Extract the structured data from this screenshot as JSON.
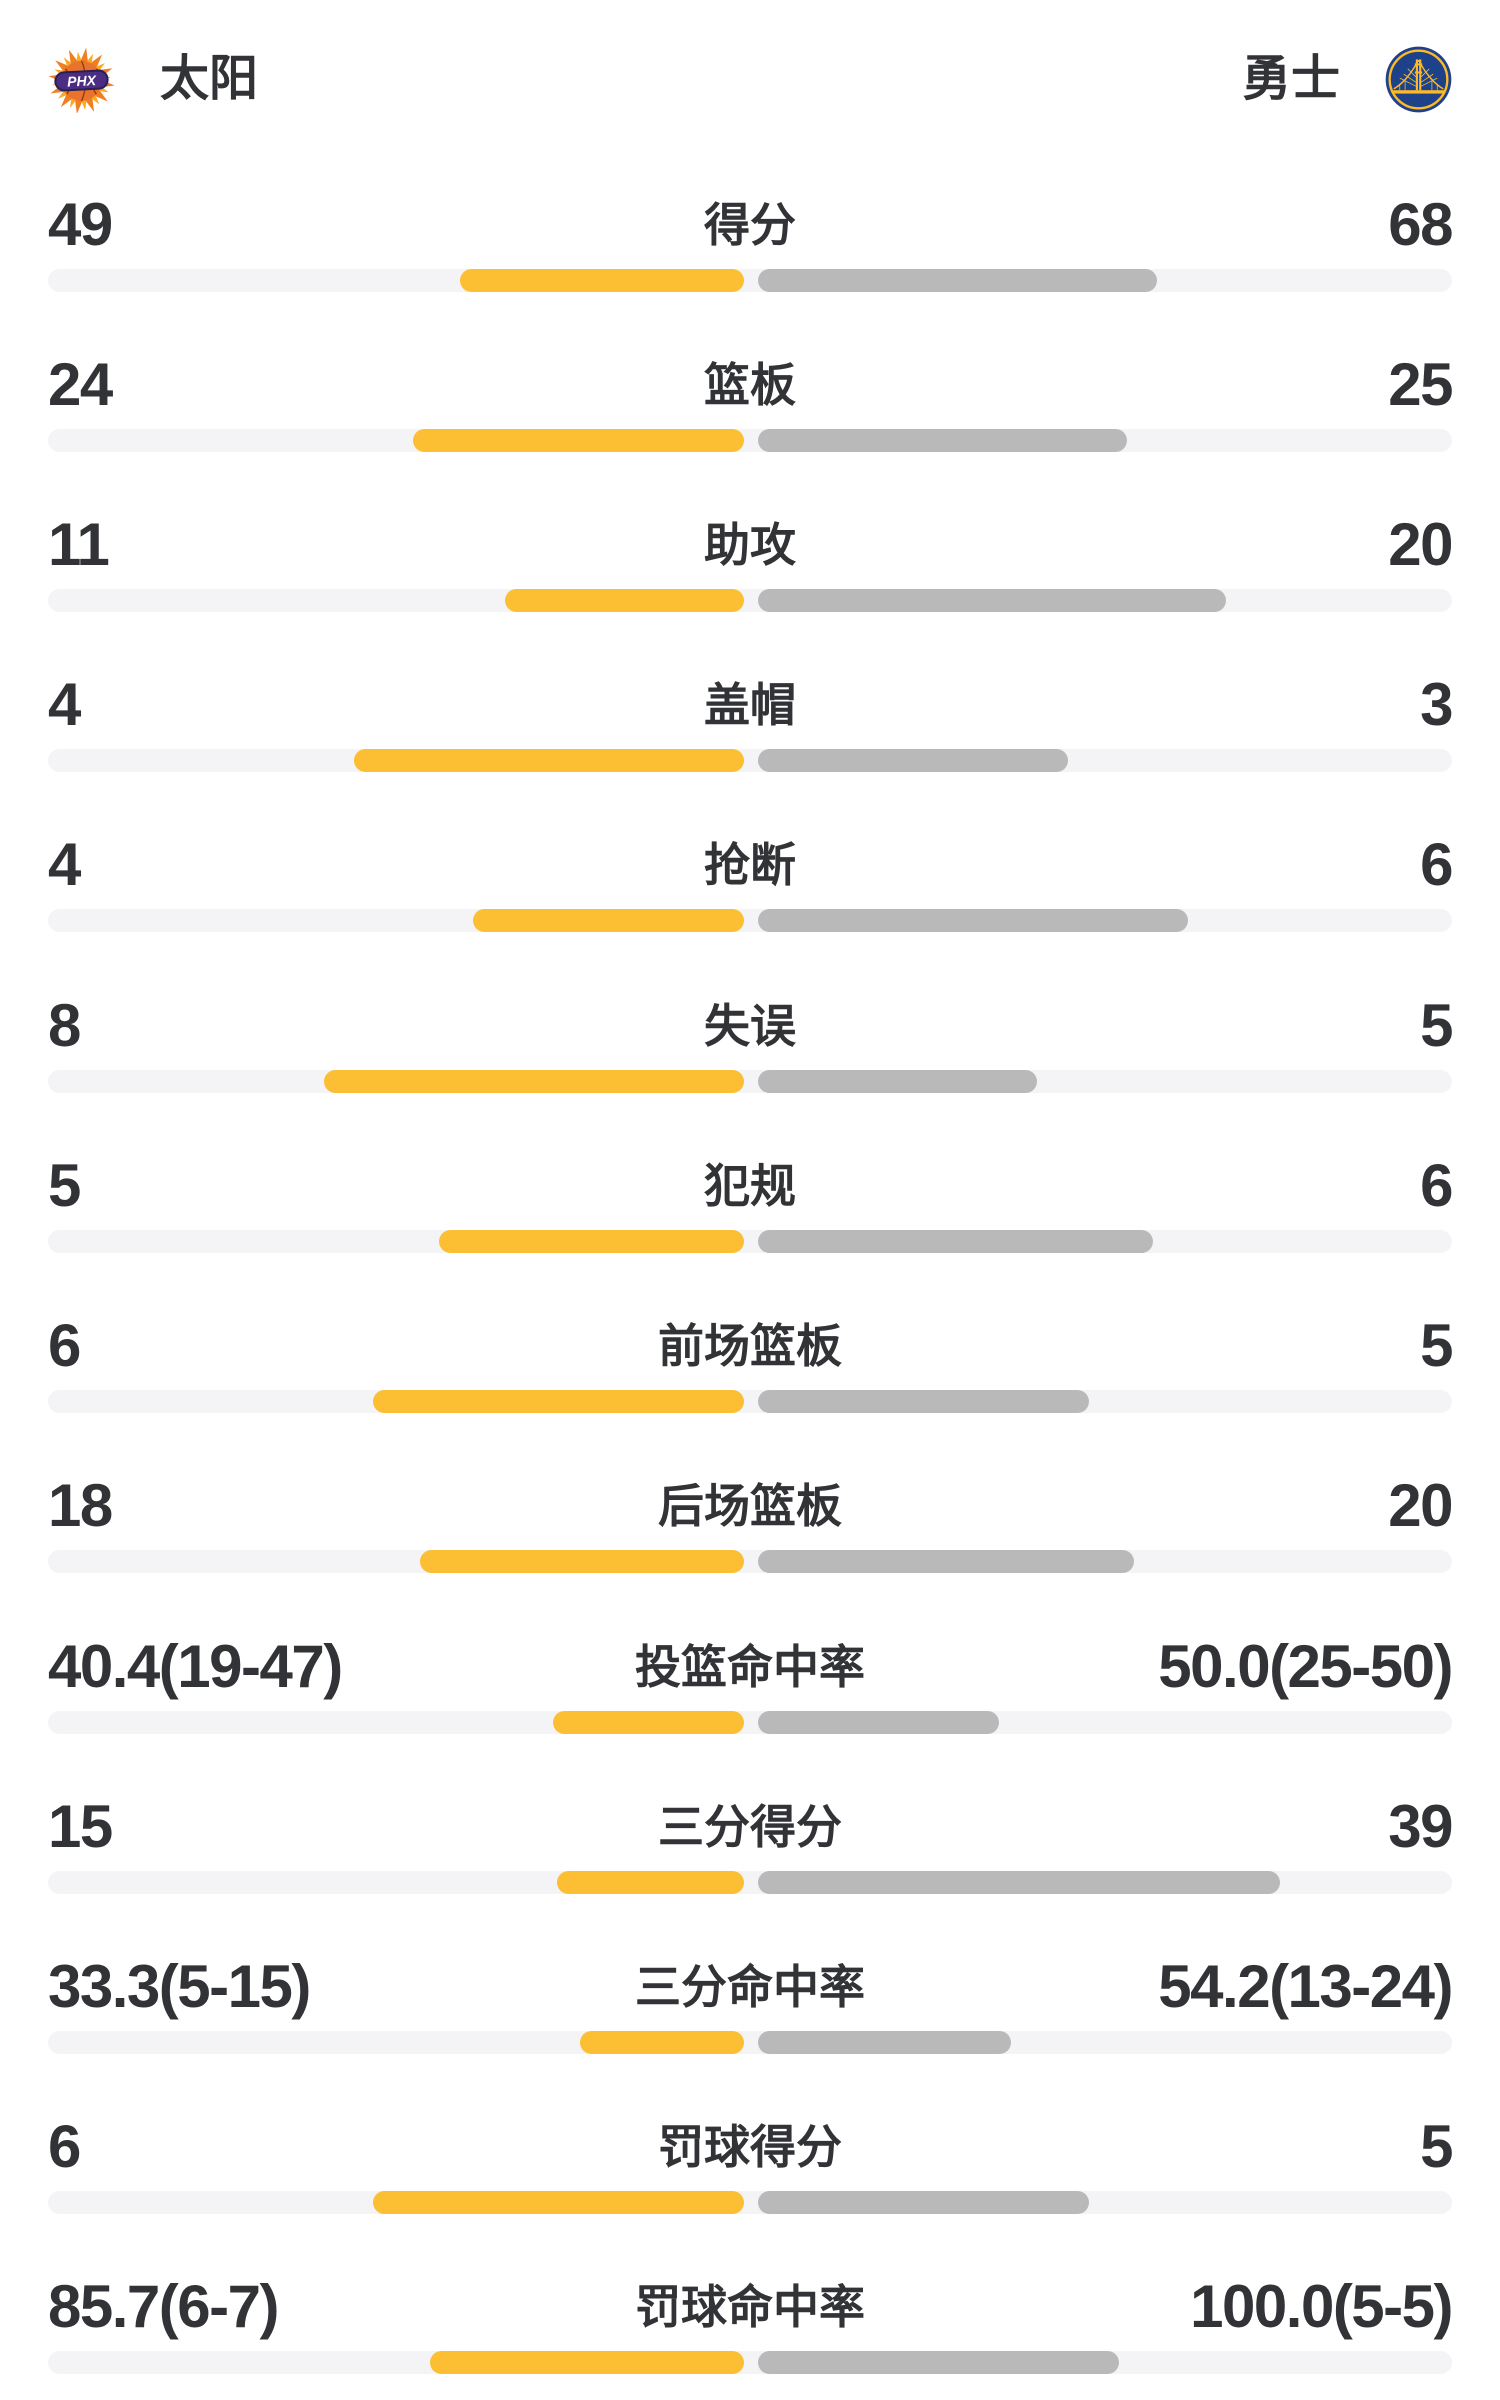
{
  "header": {
    "left_team": {
      "name": "太阳",
      "logo_text": "PHX"
    },
    "right_team": {
      "name": "勇士"
    }
  },
  "colors": {
    "background": "#FFFFFF",
    "text": "#323337",
    "left_bar": "#FCBE33",
    "right_bar": "#B9B9B9",
    "track": "#F4F4F6",
    "suns_orange": "#F07E23",
    "suns_yellow": "#FBA91E",
    "suns_ball": "#E9732C",
    "suns_seam": "#8C3B14",
    "suns_purple": "#4B2E83",
    "suns_purple_dark": "#2A1F54",
    "warriors_blue": "#1D428A",
    "warriors_gold": "#FDB927"
  },
  "chart_data": {
    "type": "bar",
    "orientation": "horizontal-paired",
    "legend_position": "none",
    "grid": false,
    "categories": [
      "得分",
      "篮板",
      "助攻",
      "盖帽",
      "抢断",
      "失误",
      "犯规",
      "前场篮板",
      "后场篮板",
      "投篮命中率",
      "三分得分",
      "三分命中率",
      "罚球得分",
      "罚球命中率"
    ],
    "series": [
      {
        "name": "太阳",
        "side": "left",
        "color": "#FCBE33",
        "values": [
          49,
          24,
          11,
          4,
          4,
          8,
          5,
          6,
          18,
          40.4,
          15,
          33.3,
          6,
          85.7
        ],
        "display": [
          "49",
          "24",
          "11",
          "4",
          "4",
          "8",
          "5",
          "6",
          "18",
          "40.4(19-47)",
          "15",
          "33.3(5-15)",
          "6",
          "85.7(6-7)"
        ],
        "bar_fracs": [
          0.202,
          0.236,
          0.17,
          0.278,
          0.193,
          0.299,
          0.217,
          0.264,
          0.231,
          0.136,
          0.133,
          0.117,
          0.264,
          0.224
        ]
      },
      {
        "name": "勇士",
        "side": "right",
        "color": "#B9B9B9",
        "values": [
          68,
          25,
          20,
          3,
          6,
          5,
          6,
          5,
          20,
          50.0,
          39,
          54.2,
          5,
          100.0
        ],
        "display": [
          "68",
          "25",
          "20",
          "3",
          "6",
          "5",
          "6",
          "5",
          "20",
          "50.0(25-50)",
          "39",
          "54.2(13-24)",
          "5",
          "100.0(5-5)"
        ],
        "bar_fracs": [
          0.284,
          0.263,
          0.333,
          0.221,
          0.306,
          0.199,
          0.281,
          0.236,
          0.268,
          0.172,
          0.372,
          0.18,
          0.236,
          0.257
        ]
      }
    ]
  }
}
